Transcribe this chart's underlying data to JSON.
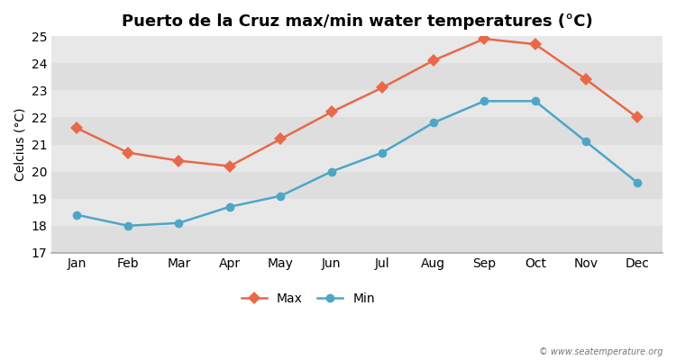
{
  "title": "Puerto de la Cruz max/min water temperatures (°C)",
  "ylabel": "Celcius (°C)",
  "months": [
    "Jan",
    "Feb",
    "Mar",
    "Apr",
    "May",
    "Jun",
    "Jul",
    "Aug",
    "Sep",
    "Oct",
    "Nov",
    "Dec"
  ],
  "max_temps": [
    21.6,
    20.7,
    20.4,
    20.2,
    21.2,
    22.2,
    23.1,
    24.1,
    24.9,
    24.7,
    23.4,
    22.0
  ],
  "min_temps": [
    18.4,
    18.0,
    18.1,
    18.7,
    19.1,
    20.0,
    20.7,
    21.8,
    22.6,
    22.6,
    21.1,
    19.6
  ],
  "max_color": "#e8694a",
  "min_color": "#4da6c8",
  "ylim": [
    17,
    25
  ],
  "yticks": [
    17,
    18,
    19,
    20,
    21,
    22,
    23,
    24,
    25
  ],
  "band_colors": [
    "#dedede",
    "#e8e8e8"
  ],
  "outer_bg": "#ffffff",
  "bottom_spine_color": "#aaaaaa",
  "watermark": "© www.seatemperature.org",
  "legend_labels": [
    "Max",
    "Min"
  ],
  "max_marker": "D",
  "min_marker": "o",
  "max_markersize": 7,
  "min_markersize": 7,
  "linewidth": 1.8,
  "title_fontsize": 13,
  "label_fontsize": 10,
  "tick_fontsize": 10
}
